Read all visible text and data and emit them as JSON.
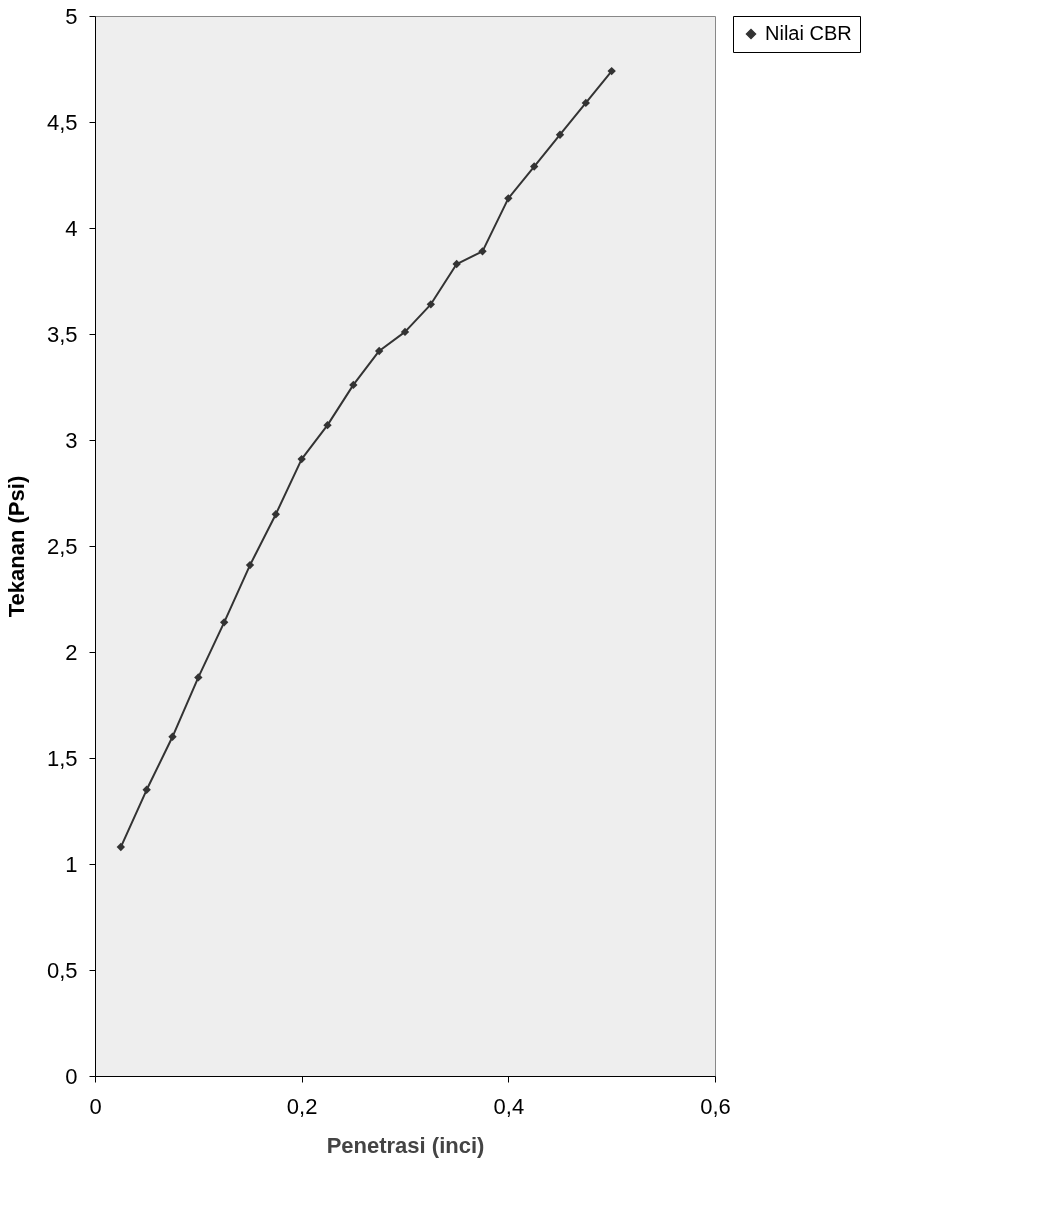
{
  "chart_data": {
    "type": "line",
    "xlabel": "Penetrasi (inci)",
    "ylabel": "Tekanan (Psi)",
    "x": [
      0.025,
      0.05,
      0.075,
      0.1,
      0.125,
      0.15,
      0.175,
      0.2,
      0.225,
      0.25,
      0.275,
      0.3,
      0.325,
      0.35,
      0.375,
      0.4,
      0.425,
      0.45,
      0.475,
      0.5
    ],
    "series": [
      {
        "name": "Nilai CBR",
        "color": "#333333",
        "values": [
          1.08,
          1.35,
          1.6,
          1.88,
          2.14,
          2.41,
          2.65,
          2.91,
          3.07,
          3.26,
          3.42,
          3.51,
          3.64,
          3.83,
          3.89,
          4.14,
          4.29,
          4.44,
          4.59,
          4.74
        ]
      }
    ],
    "xlim": [
      0,
      0.6
    ],
    "ylim": [
      0,
      5
    ],
    "xticks": [
      0,
      {
        "value": 0.2,
        "label": "0,2"
      },
      {
        "value": 0.4,
        "label": "0,4"
      },
      {
        "value": 0.6,
        "label": "0,6"
      }
    ],
    "yticks": [
      0,
      {
        "value": 0.5,
        "label": "0,5"
      },
      1,
      {
        "value": 1.5,
        "label": "1,5"
      },
      2,
      {
        "value": 2.5,
        "label": "2,5"
      },
      3,
      {
        "value": 3.5,
        "label": "3,5"
      },
      4,
      {
        "value": 4.5,
        "label": "4,5"
      },
      5
    ],
    "marker": "diamond",
    "line_style": "solid",
    "grid": false,
    "legend": "right"
  }
}
